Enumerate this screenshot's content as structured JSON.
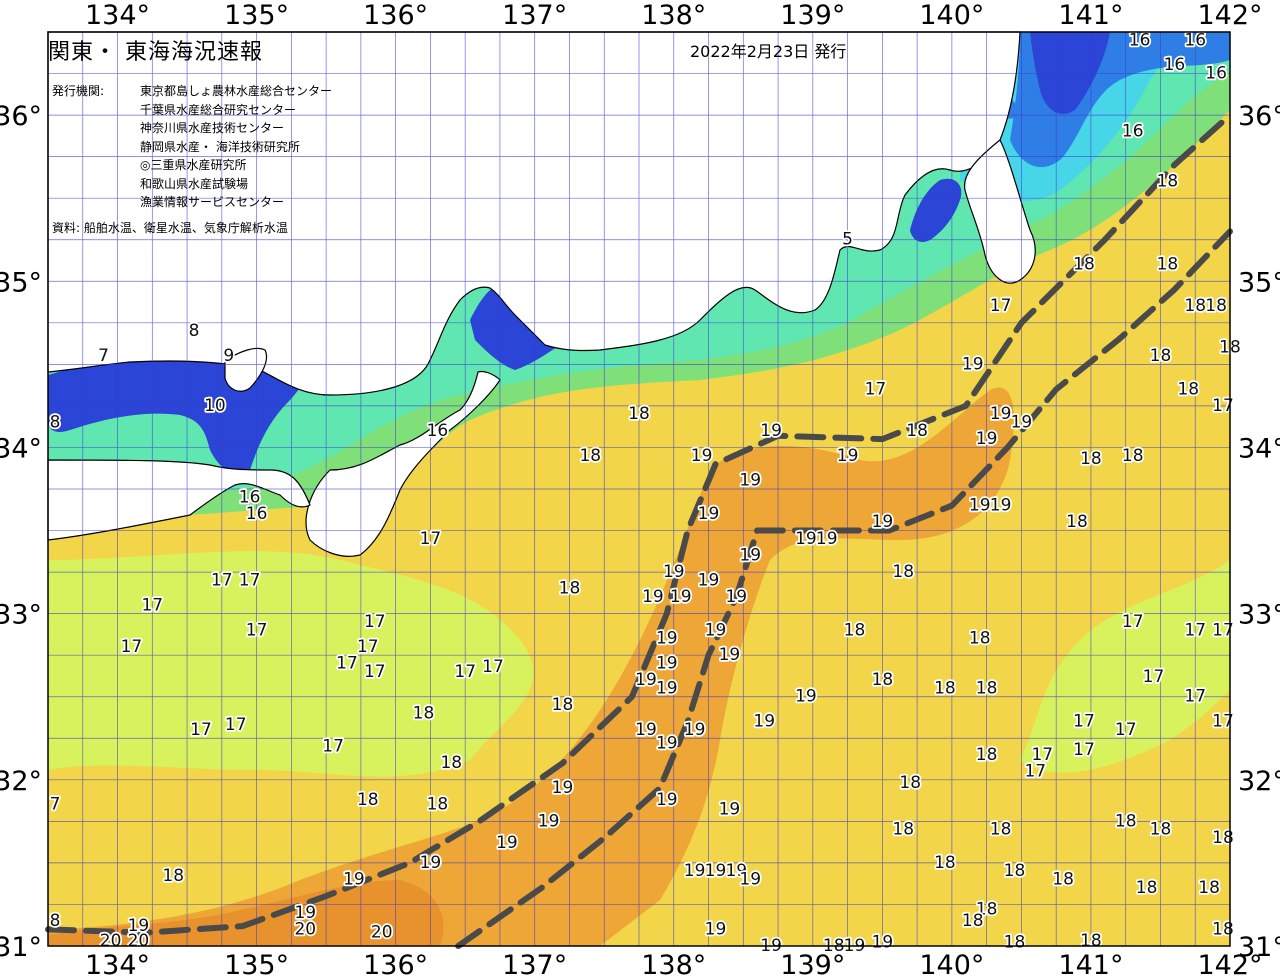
{
  "title": "関東・ 東海海況速報",
  "issue_date": "2022年2月23日 発行",
  "agency_label": "発行機関:",
  "agencies": [
    "東京都島しょ農林水産総合センター",
    "千葉県水産総合研究センター",
    "神奈川県水産技術センター",
    "静岡県水産・ 海洋技術研究所",
    "◎三重県水産研究所",
    "和歌山県水産試験場",
    "漁業情報サービスセンター"
  ],
  "source": "資料: 船舶水温、衛星水温、気象庁解析水温",
  "axes": {
    "lon_ticks": [
      "134°",
      "135°",
      "136°",
      "137°",
      "138°",
      "139°",
      "140°",
      "141°",
      "142°"
    ],
    "lat_ticks": [
      "36°",
      "35°",
      "34°",
      "33°",
      "32°",
      "31°"
    ]
  },
  "colors": {
    "land": "#ffffff",
    "t_below_10": "#2b45d6",
    "t_11_13": "#2f7ee6",
    "t_14": "#47d6e8",
    "t_15": "#60e6b0",
    "t_16": "#7fe07a",
    "t_17": "#d8f25e",
    "t_18": "#f2d548",
    "t_19": "#eea637",
    "t_20": "#e7922c",
    "kuroshio_axis": "#4a4a4a",
    "grid": "#3a3ad0"
  },
  "chart_data": {
    "type": "map",
    "lon_range": [
      133.5,
      142.0
    ],
    "lat_range": [
      31.0,
      36.5
    ],
    "grid_step_deg": 0.25,
    "kuroshio_axes": [
      {
        "name": "",
        "lonlat": [
          [
            133.5,
            31.1
          ],
          [
            134.2,
            31.08
          ],
          [
            134.9,
            31.12
          ],
          [
            135.5,
            31.3
          ],
          [
            136.1,
            31.5
          ],
          [
            136.6,
            31.75
          ],
          [
            137.2,
            32.1
          ],
          [
            137.7,
            32.5
          ],
          [
            137.95,
            33.0
          ],
          [
            138.1,
            33.5
          ],
          [
            138.3,
            33.9
          ],
          [
            138.75,
            34.07
          ],
          [
            139.5,
            34.05
          ],
          [
            140.1,
            34.25
          ],
          [
            140.5,
            34.75
          ],
          [
            141.1,
            35.25
          ],
          [
            141.6,
            35.7
          ],
          [
            142.0,
            36.0
          ]
        ]
      },
      {
        "name": "",
        "lonlat": [
          [
            136.45,
            31.0
          ],
          [
            137.05,
            31.35
          ],
          [
            137.5,
            31.65
          ],
          [
            137.9,
            31.95
          ],
          [
            138.1,
            32.35
          ],
          [
            138.25,
            32.75
          ],
          [
            138.45,
            33.1
          ],
          [
            138.6,
            33.5
          ],
          [
            139.0,
            33.5
          ],
          [
            139.55,
            33.5
          ],
          [
            140.0,
            33.65
          ],
          [
            140.4,
            34.0
          ],
          [
            140.75,
            34.35
          ],
          [
            141.2,
            34.65
          ],
          [
            141.6,
            34.95
          ],
          [
            142.0,
            35.3
          ]
        ]
      }
    ],
    "temperature_labels": [
      {
        "t": "16",
        "lon": 141.35,
        "lat": 36.45
      },
      {
        "t": "16",
        "lon": 141.75,
        "lat": 36.45
      },
      {
        "t": "16",
        "lon": 141.9,
        "lat": 36.25
      },
      {
        "t": "16",
        "lon": 141.6,
        "lat": 36.3
      },
      {
        "t": "16",
        "lon": 141.3,
        "lat": 35.9
      },
      {
        "t": "18",
        "lon": 141.55,
        "lat": 35.6
      },
      {
        "t": "18",
        "lon": 140.95,
        "lat": 35.1
      },
      {
        "t": "18",
        "lon": 141.55,
        "lat": 35.1
      },
      {
        "t": "17",
        "lon": 140.35,
        "lat": 34.85
      },
      {
        "t": "18",
        "lon": 141.75,
        "lat": 34.85
      },
      {
        "t": "18",
        "lon": 141.9,
        "lat": 34.85
      },
      {
        "t": "18",
        "lon": 142.0,
        "lat": 34.6
      },
      {
        "t": "18",
        "lon": 141.5,
        "lat": 34.55
      },
      {
        "t": "18",
        "lon": 141.7,
        "lat": 34.35
      },
      {
        "t": "17",
        "lon": 141.95,
        "lat": 34.25
      },
      {
        "t": "19",
        "lon": 140.15,
        "lat": 34.5
      },
      {
        "t": "17",
        "lon": 139.45,
        "lat": 34.35
      },
      {
        "t": "19",
        "lon": 140.35,
        "lat": 34.2
      },
      {
        "t": "19",
        "lon": 140.5,
        "lat": 34.15
      },
      {
        "t": "19",
        "lon": 140.25,
        "lat": 34.05
      },
      {
        "t": "18",
        "lon": 139.75,
        "lat": 34.1
      },
      {
        "t": "18",
        "lon": 141.3,
        "lat": 33.95
      },
      {
        "t": "18",
        "lon": 141.0,
        "lat": 33.93
      },
      {
        "t": "19",
        "lon": 138.7,
        "lat": 34.1
      },
      {
        "t": "19",
        "lon": 139.25,
        "lat": 33.95
      },
      {
        "t": "18",
        "lon": 137.75,
        "lat": 34.2
      },
      {
        "t": "19",
        "lon": 138.2,
        "lat": 33.95
      },
      {
        "t": "18",
        "lon": 137.4,
        "lat": 33.95
      },
      {
        "t": "16",
        "lon": 136.3,
        "lat": 34.1
      },
      {
        "t": "19",
        "lon": 138.55,
        "lat": 33.8
      },
      {
        "t": "19",
        "lon": 140.2,
        "lat": 33.65
      },
      {
        "t": "19",
        "lon": 140.35,
        "lat": 33.65
      },
      {
        "t": "19",
        "lon": 138.25,
        "lat": 33.6
      },
      {
        "t": "18",
        "lon": 140.9,
        "lat": 33.55
      },
      {
        "t": "19",
        "lon": 139.5,
        "lat": 33.55
      },
      {
        "t": "19",
        "lon": 138.95,
        "lat": 33.45
      },
      {
        "t": "19",
        "lon": 139.1,
        "lat": 33.45
      },
      {
        "t": "19",
        "lon": 138.55,
        "lat": 33.35
      },
      {
        "t": "18",
        "lon": 139.65,
        "lat": 33.25
      },
      {
        "t": "17",
        "lon": 136.25,
        "lat": 33.45
      },
      {
        "t": "16",
        "lon": 135.0,
        "lat": 33.6
      },
      {
        "t": "19",
        "lon": 138.0,
        "lat": 33.25
      },
      {
        "t": "19",
        "lon": 138.25,
        "lat": 33.2
      },
      {
        "t": "17",
        "lon": 134.75,
        "lat": 33.2
      },
      {
        "t": "17",
        "lon": 134.95,
        "lat": 33.2
      },
      {
        "t": "18",
        "lon": 137.25,
        "lat": 33.15
      },
      {
        "t": "19",
        "lon": 137.85,
        "lat": 33.1
      },
      {
        "t": "19",
        "lon": 138.05,
        "lat": 33.1
      },
      {
        "t": "19",
        "lon": 138.45,
        "lat": 33.1
      },
      {
        "t": "17",
        "lon": 134.25,
        "lat": 33.05
      },
      {
        "t": "17",
        "lon": 135.0,
        "lat": 32.9
      },
      {
        "t": "17",
        "lon": 135.85,
        "lat": 32.95
      },
      {
        "t": "18",
        "lon": 139.3,
        "lat": 32.9
      },
      {
        "t": "19",
        "lon": 138.3,
        "lat": 32.9
      },
      {
        "t": "19",
        "lon": 137.95,
        "lat": 32.85
      },
      {
        "t": "18",
        "lon": 140.2,
        "lat": 32.85
      },
      {
        "t": "17",
        "lon": 141.3,
        "lat": 32.95
      },
      {
        "t": "17",
        "lon": 141.75,
        "lat": 32.9
      },
      {
        "t": "17",
        "lon": 141.95,
        "lat": 32.9
      },
      {
        "t": "17",
        "lon": 134.1,
        "lat": 32.8
      },
      {
        "t": "17",
        "lon": 135.8,
        "lat": 32.8
      },
      {
        "t": "17",
        "lon": 135.65,
        "lat": 32.7
      },
      {
        "t": "19",
        "lon": 138.4,
        "lat": 32.75
      },
      {
        "t": "19",
        "lon": 137.95,
        "lat": 32.7
      },
      {
        "t": "17",
        "lon": 135.85,
        "lat": 32.65
      },
      {
        "t": "17",
        "lon": 136.5,
        "lat": 32.65
      },
      {
        "t": "17",
        "lon": 136.7,
        "lat": 32.68
      },
      {
        "t": "19",
        "lon": 137.8,
        "lat": 32.6
      },
      {
        "t": "19",
        "lon": 137.95,
        "lat": 32.55
      },
      {
        "t": "18",
        "lon": 139.5,
        "lat": 32.6
      },
      {
        "t": "18",
        "lon": 139.95,
        "lat": 32.55
      },
      {
        "t": "18",
        "lon": 140.25,
        "lat": 32.55
      },
      {
        "t": "17",
        "lon": 141.45,
        "lat": 32.62
      },
      {
        "t": "17",
        "lon": 141.75,
        "lat": 32.5
      },
      {
        "t": "19",
        "lon": 138.95,
        "lat": 32.5
      },
      {
        "t": "18",
        "lon": 137.2,
        "lat": 32.45
      },
      {
        "t": "18",
        "lon": 136.2,
        "lat": 32.4
      },
      {
        "t": "19",
        "lon": 138.65,
        "lat": 32.35
      },
      {
        "t": "17",
        "lon": 140.95,
        "lat": 32.35
      },
      {
        "t": "17",
        "lon": 141.25,
        "lat": 32.3
      },
      {
        "t": "17",
        "lon": 141.95,
        "lat": 32.35
      },
      {
        "t": "17",
        "lon": 134.6,
        "lat": 32.3
      },
      {
        "t": "17",
        "lon": 134.85,
        "lat": 32.33
      },
      {
        "t": "19",
        "lon": 137.8,
        "lat": 32.3
      },
      {
        "t": "19",
        "lon": 138.15,
        "lat": 32.3
      },
      {
        "t": "19",
        "lon": 137.95,
        "lat": 32.22
      },
      {
        "t": "17",
        "lon": 135.55,
        "lat": 32.2
      },
      {
        "t": "18",
        "lon": 140.25,
        "lat": 32.15
      },
      {
        "t": "17",
        "lon": 140.65,
        "lat": 32.15
      },
      {
        "t": "17",
        "lon": 140.95,
        "lat": 32.18
      },
      {
        "t": "18",
        "lon": 136.4,
        "lat": 32.1
      },
      {
        "t": "17",
        "lon": 140.6,
        "lat": 32.05
      },
      {
        "t": "19",
        "lon": 137.2,
        "lat": 31.95
      },
      {
        "t": "18",
        "lon": 139.7,
        "lat": 31.98
      },
      {
        "t": "18",
        "lon": 135.8,
        "lat": 31.88
      },
      {
        "t": "18",
        "lon": 136.3,
        "lat": 31.85
      },
      {
        "t": "19",
        "lon": 137.95,
        "lat": 31.88
      },
      {
        "t": "19",
        "lon": 138.4,
        "lat": 31.82
      },
      {
        "t": "7",
        "lon": 133.55,
        "lat": 31.85
      },
      {
        "t": "19",
        "lon": 137.1,
        "lat": 31.75
      },
      {
        "t": "19",
        "lon": 136.8,
        "lat": 31.62
      },
      {
        "t": "18",
        "lon": 141.25,
        "lat": 31.75
      },
      {
        "t": "18",
        "lon": 141.5,
        "lat": 31.7
      },
      {
        "t": "18",
        "lon": 141.95,
        "lat": 31.65
      },
      {
        "t": "18",
        "lon": 139.65,
        "lat": 31.7
      },
      {
        "t": "18",
        "lon": 140.35,
        "lat": 31.7
      },
      {
        "t": "19",
        "lon": 136.25,
        "lat": 31.5
      },
      {
        "t": "19",
        "lon": 138.15,
        "lat": 31.45
      },
      {
        "t": "19",
        "lon": 138.3,
        "lat": 31.45
      },
      {
        "t": "19",
        "lon": 138.45,
        "lat": 31.45
      },
      {
        "t": "19",
        "lon": 138.55,
        "lat": 31.4
      },
      {
        "t": "18",
        "lon": 139.95,
        "lat": 31.5
      },
      {
        "t": "18",
        "lon": 140.45,
        "lat": 31.45
      },
      {
        "t": "18",
        "lon": 140.8,
        "lat": 31.4
      },
      {
        "t": "18",
        "lon": 134.4,
        "lat": 31.42
      },
      {
        "t": "19",
        "lon": 135.7,
        "lat": 31.4
      },
      {
        "t": "18",
        "lon": 141.4,
        "lat": 31.35
      },
      {
        "t": "18",
        "lon": 141.85,
        "lat": 31.35
      },
      {
        "t": "19",
        "lon": 135.35,
        "lat": 31.2
      },
      {
        "t": "18",
        "lon": 140.25,
        "lat": 31.22
      },
      {
        "t": "18",
        "lon": 140.15,
        "lat": 31.15
      },
      {
        "t": "20",
        "lon": 135.35,
        "lat": 31.1
      },
      {
        "t": "20",
        "lon": 135.9,
        "lat": 31.08
      },
      {
        "t": "19",
        "lon": 138.3,
        "lat": 31.1
      },
      {
        "t": "18",
        "lon": 141.95,
        "lat": 31.1
      },
      {
        "t": "8",
        "lon": 133.55,
        "lat": 31.15
      },
      {
        "t": "19",
        "lon": 134.15,
        "lat": 31.12
      },
      {
        "t": "20",
        "lon": 133.95,
        "lat": 31.03
      },
      {
        "t": "20",
        "lon": 134.15,
        "lat": 31.03
      },
      {
        "t": "19",
        "lon": 138.7,
        "lat": 31.0
      },
      {
        "t": "18",
        "lon": 139.15,
        "lat": 31.0
      },
      {
        "t": "19",
        "lon": 139.3,
        "lat": 31.0
      },
      {
        "t": "19",
        "lon": 139.5,
        "lat": 31.02
      },
      {
        "t": "18",
        "lon": 140.45,
        "lat": 31.02
      },
      {
        "t": "18",
        "lon": 141.0,
        "lat": 31.03
      },
      {
        "t": "8",
        "lon": 134.55,
        "lat": 34.7
      },
      {
        "t": "9",
        "lon": 134.8,
        "lat": 34.55
      },
      {
        "t": "7",
        "lon": 133.9,
        "lat": 34.55
      },
      {
        "t": "10",
        "lon": 134.7,
        "lat": 34.25
      },
      {
        "t": "8",
        "lon": 133.55,
        "lat": 34.15
      },
      {
        "t": "16",
        "lon": 134.95,
        "lat": 33.7
      },
      {
        "t": "5",
        "lon": 139.25,
        "lat": 35.25
      }
    ]
  }
}
